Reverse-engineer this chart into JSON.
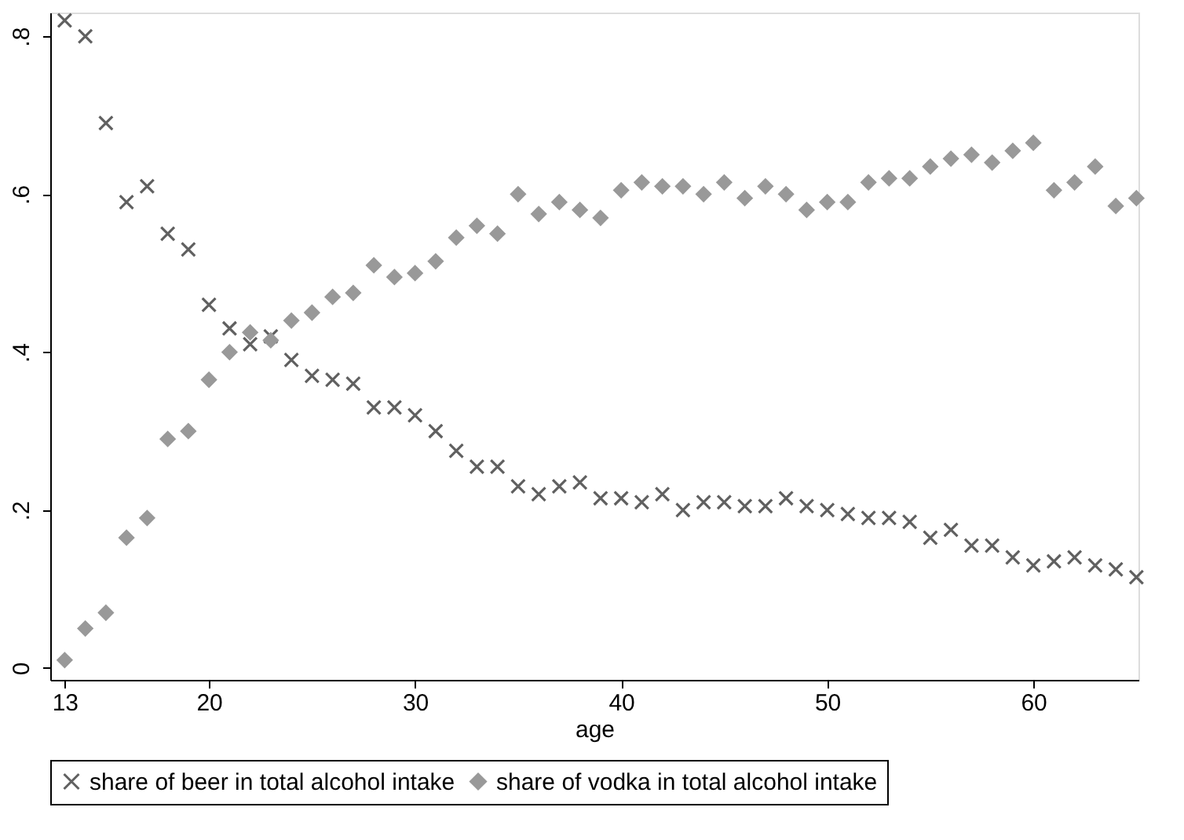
{
  "chart_data": {
    "type": "scatter",
    "xlabel": "age",
    "x": [
      13,
      14,
      15,
      16,
      17,
      18,
      19,
      20,
      21,
      22,
      23,
      24,
      25,
      26,
      27,
      28,
      29,
      30,
      31,
      32,
      33,
      34,
      35,
      36,
      37,
      38,
      39,
      40,
      41,
      42,
      43,
      44,
      45,
      46,
      47,
      48,
      49,
      50,
      51,
      52,
      53,
      54,
      55,
      56,
      57,
      58,
      59,
      60,
      61,
      62,
      63,
      64,
      65
    ],
    "series": [
      {
        "name": "share of beer in total alcohol intake",
        "color": "#606060",
        "marker": "cross",
        "values": [
          0.82,
          0.8,
          0.69,
          0.59,
          0.61,
          0.55,
          0.53,
          0.46,
          0.43,
          0.41,
          0.42,
          0.39,
          0.37,
          0.365,
          0.36,
          0.33,
          0.33,
          0.32,
          0.3,
          0.275,
          0.255,
          0.255,
          0.23,
          0.22,
          0.23,
          0.235,
          0.215,
          0.215,
          0.21,
          0.22,
          0.2,
          0.21,
          0.21,
          0.205,
          0.205,
          0.215,
          0.205,
          0.2,
          0.195,
          0.19,
          0.19,
          0.185,
          0.165,
          0.175,
          0.155,
          0.155,
          0.14,
          0.13,
          0.135,
          0.14,
          0.13,
          0.125,
          0.115
        ]
      },
      {
        "name": "share of vodka in total alcohol intake",
        "color": "#999999",
        "marker": "diamond",
        "values": [
          0.01,
          0.05,
          0.07,
          0.165,
          0.19,
          0.29,
          0.3,
          0.365,
          0.4,
          0.425,
          0.415,
          0.44,
          0.45,
          0.47,
          0.475,
          0.51,
          0.495,
          0.5,
          0.515,
          0.545,
          0.56,
          0.55,
          0.6,
          0.575,
          0.59,
          0.58,
          0.57,
          0.605,
          0.615,
          0.61,
          0.61,
          0.6,
          0.615,
          0.595,
          0.61,
          0.6,
          0.58,
          0.59,
          0.59,
          0.615,
          0.62,
          0.62,
          0.635,
          0.645,
          0.65,
          0.64,
          0.655,
          0.665,
          0.605,
          0.615,
          0.635,
          0.585,
          0.595
        ]
      }
    ],
    "xlim": [
      12.3,
      65.1
    ],
    "xticks": [
      13,
      20,
      30,
      40,
      50,
      60
    ],
    "ylim": [
      -0.015,
      0.83
    ],
    "yticks": [
      0,
      {
        "value": 0.2,
        "label": ".2"
      },
      {
        "value": 0.4,
        "label": ".4"
      },
      {
        "value": 0.6,
        "label": ".6"
      },
      {
        "value": 0.8,
        "label": ".8"
      }
    ],
    "grid": false,
    "legend": "bottom"
  }
}
